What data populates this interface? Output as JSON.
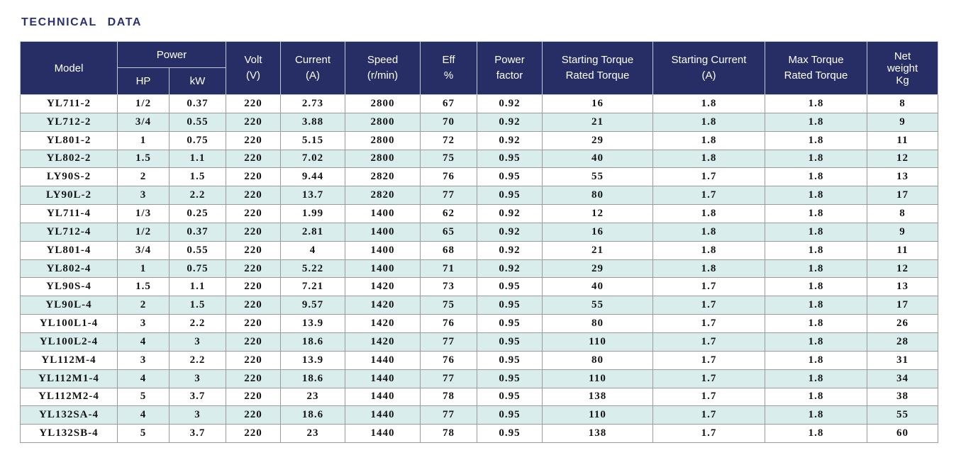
{
  "page": {
    "title": "TECHNICAL DATA"
  },
  "colors": {
    "page_bg": "#ffffff",
    "title_color": "#2a3173",
    "header_bg": "#272e66",
    "header_text": "#ffffff",
    "stripe_bg": "#d8edec",
    "row_bg": "#ffffff",
    "cell_text": "#141414"
  },
  "table": {
    "header": {
      "model": "Model",
      "power": "Power",
      "hp": "HP",
      "kw": "kW",
      "volt": [
        "Volt",
        "(V)"
      ],
      "current": [
        "Current",
        "(A)"
      ],
      "speed": [
        "Speed",
        "(r/min)"
      ],
      "eff": [
        "Eff",
        "%"
      ],
      "power_factor": [
        "Power",
        "factor"
      ],
      "starting_torque": [
        "Starting Torque",
        "Rated Torque"
      ],
      "starting_current": [
        "Starting Current",
        "(A)"
      ],
      "max_torque": [
        "Max Torque",
        "Rated Torque"
      ],
      "net_weight": [
        "Net",
        "weight",
        "Kg"
      ]
    },
    "rows": [
      [
        "YL711-2",
        "1/2",
        "0.37",
        "220",
        "2.73",
        "2800",
        "67",
        "0.92",
        "16",
        "1.8",
        "1.8",
        "8"
      ],
      [
        "YL712-2",
        "3/4",
        "0.55",
        "220",
        "3.88",
        "2800",
        "70",
        "0.92",
        "21",
        "1.8",
        "1.8",
        "9"
      ],
      [
        "YL801-2",
        "1",
        "0.75",
        "220",
        "5.15",
        "2800",
        "72",
        "0.92",
        "29",
        "1.8",
        "1.8",
        "11"
      ],
      [
        "YL802-2",
        "1.5",
        "1.1",
        "220",
        "7.02",
        "2800",
        "75",
        "0.95",
        "40",
        "1.8",
        "1.8",
        "12"
      ],
      [
        "LY90S-2",
        "2",
        "1.5",
        "220",
        "9.44",
        "2820",
        "76",
        "0.95",
        "55",
        "1.7",
        "1.8",
        "13"
      ],
      [
        "LY90L-2",
        "3",
        "2.2",
        "220",
        "13.7",
        "2820",
        "77",
        "0.95",
        "80",
        "1.7",
        "1.8",
        "17"
      ],
      [
        "YL711-4",
        "1/3",
        "0.25",
        "220",
        "1.99",
        "1400",
        "62",
        "0.92",
        "12",
        "1.8",
        "1.8",
        "8"
      ],
      [
        "YL712-4",
        "1/2",
        "0.37",
        "220",
        "2.81",
        "1400",
        "65",
        "0.92",
        "16",
        "1.8",
        "1.8",
        "9"
      ],
      [
        "YL801-4",
        "3/4",
        "0.55",
        "220",
        "4",
        "1400",
        "68",
        "0.92",
        "21",
        "1.8",
        "1.8",
        "11"
      ],
      [
        "YL802-4",
        "1",
        "0.75",
        "220",
        "5.22",
        "1400",
        "71",
        "0.92",
        "29",
        "1.8",
        "1.8",
        "12"
      ],
      [
        "YL90S-4",
        "1.5",
        "1.1",
        "220",
        "7.21",
        "1420",
        "73",
        "0.95",
        "40",
        "1.7",
        "1.8",
        "13"
      ],
      [
        "YL90L-4",
        "2",
        "1.5",
        "220",
        "9.57",
        "1420",
        "75",
        "0.95",
        "55",
        "1.7",
        "1.8",
        "17"
      ],
      [
        "YL100L1-4",
        "3",
        "2.2",
        "220",
        "13.9",
        "1420",
        "76",
        "0.95",
        "80",
        "1.7",
        "1.8",
        "26"
      ],
      [
        "YL100L2-4",
        "4",
        "3",
        "220",
        "18.6",
        "1420",
        "77",
        "0.95",
        "110",
        "1.7",
        "1.8",
        "28"
      ],
      [
        "YL112M-4",
        "3",
        "2.2",
        "220",
        "13.9",
        "1440",
        "76",
        "0.95",
        "80",
        "1.7",
        "1.8",
        "31"
      ],
      [
        "YL112M1-4",
        "4",
        "3",
        "220",
        "18.6",
        "1440",
        "77",
        "0.95",
        "110",
        "1.7",
        "1.8",
        "34"
      ],
      [
        "YL112M2-4",
        "5",
        "3.7",
        "220",
        "23",
        "1440",
        "78",
        "0.95",
        "138",
        "1.7",
        "1.8",
        "38"
      ],
      [
        "YL132SA-4",
        "4",
        "3",
        "220",
        "18.6",
        "1440",
        "77",
        "0.95",
        "110",
        "1.7",
        "1.8",
        "55"
      ],
      [
        "YL132SB-4",
        "5",
        "3.7",
        "220",
        "23",
        "1440",
        "78",
        "0.95",
        "138",
        "1.7",
        "1.8",
        "60"
      ]
    ]
  }
}
